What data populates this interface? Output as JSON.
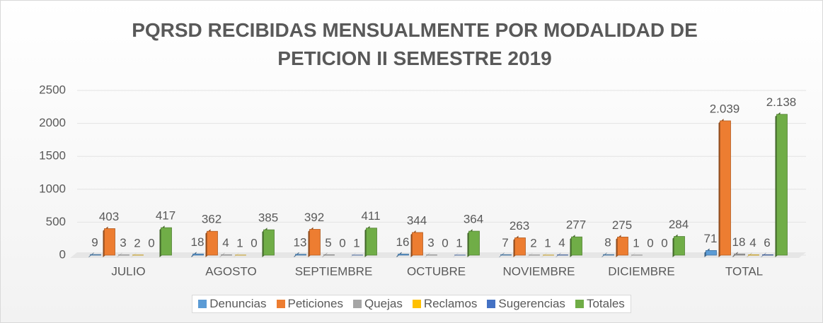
{
  "chart_data": {
    "type": "bar",
    "title": "PQRSD RECIBIDAS MENSUALMENTE POR MODALIDAD DE PETICION II SEMESTRE 2019",
    "categories": [
      "JULIO",
      "AGOSTO",
      "SEPTIEMBRE",
      "OCTUBRE",
      "NOVIEMBRE",
      "DICIEMBRE",
      "TOTAL"
    ],
    "series": [
      {
        "name": "Denuncias",
        "color": "#5b9bd5",
        "values": [
          9,
          18,
          13,
          16,
          7,
          8,
          71
        ]
      },
      {
        "name": "Peticiones",
        "color": "#ed7d31",
        "values": [
          403,
          362,
          392,
          344,
          263,
          275,
          2039
        ],
        "value_labels": [
          "403",
          "362",
          "392",
          "344",
          "263",
          "275",
          "2.039"
        ]
      },
      {
        "name": "Quejas",
        "color": "#a5a5a5",
        "values": [
          3,
          4,
          5,
          3,
          2,
          1,
          18
        ]
      },
      {
        "name": "Reclamos",
        "color": "#ffc000",
        "values": [
          2,
          1,
          0,
          0,
          1,
          0,
          4
        ]
      },
      {
        "name": "Sugerencias",
        "color": "#4472c4",
        "values": [
          0,
          0,
          1,
          1,
          4,
          0,
          6
        ]
      },
      {
        "name": "Totales",
        "color": "#70ad47",
        "values": [
          417,
          385,
          411,
          364,
          277,
          284,
          2138
        ],
        "value_labels": [
          "417",
          "385",
          "411",
          "364",
          "277",
          "284",
          "2.138"
        ]
      }
    ],
    "ylim": [
      0,
      2500
    ],
    "yticks": [
      0,
      500,
      1000,
      1500,
      2000,
      2500
    ],
    "grid": true,
    "legend": "bottom"
  }
}
